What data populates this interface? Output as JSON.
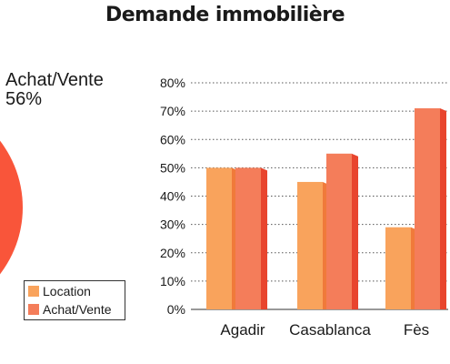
{
  "chart_data": {
    "type": "bar",
    "title": "Demande immobilière",
    "categories": [
      "Agadir",
      "Casablanca",
      "Fès"
    ],
    "series": [
      {
        "name": "Location",
        "values": [
          50,
          45,
          29
        ],
        "color": "#f9a35c",
        "side_color": "#f07a3a"
      },
      {
        "name": "Achat/Vente",
        "values": [
          50,
          55,
          71
        ],
        "color": "#f47d5a",
        "side_color": "#e8452e"
      }
    ],
    "yticks": [
      "0%",
      "10%",
      "20%",
      "30%",
      "40%",
      "50%",
      "60%",
      "70%",
      "80%"
    ],
    "ylim": [
      0,
      80
    ],
    "grid": true,
    "legend_position": "bottom-left"
  },
  "pie": {
    "label_name": "Achat/Vente",
    "label_value": "56%",
    "color": "#f9553a"
  }
}
